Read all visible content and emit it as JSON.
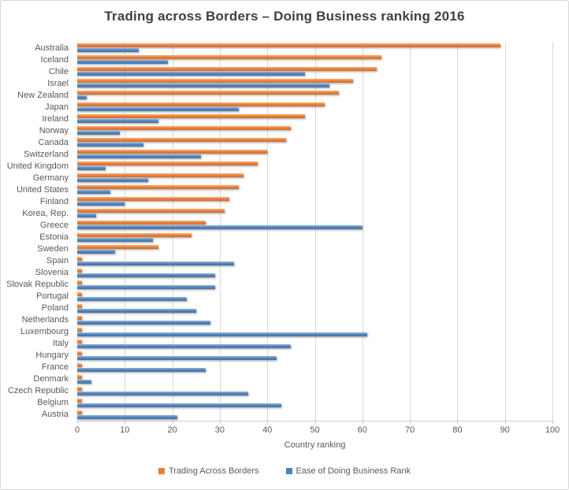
{
  "title": "Trading across Borders – Doing Business ranking 2016",
  "chart_data": {
    "type": "bar",
    "orientation": "horizontal",
    "title": "Trading across Borders – Doing Business ranking 2016",
    "xlabel": "Country ranking",
    "xlim": [
      0,
      100
    ],
    "x_ticks": [
      0,
      10,
      20,
      30,
      40,
      50,
      60,
      70,
      80,
      90,
      100
    ],
    "grid": "vertical",
    "legend_position": "bottom",
    "categories": [
      "Australia",
      "Iceland",
      "Chile",
      "Israel",
      "New Zealand",
      "Japan",
      "Ireland",
      "Norway",
      "Canada",
      "Switzerland",
      "United Kingdom",
      "Germany",
      "United States",
      "Finland",
      "Korea, Rep.",
      "Greece",
      "Estonia",
      "Sweden",
      "Spain",
      "Slovenia",
      "Slovak Republic",
      "Portugal",
      "Poland",
      "Netherlands",
      "Luxembourg",
      "Italy",
      "Hungary",
      "France",
      "Denmark",
      "Czech Republic",
      "Belgium",
      "Austria"
    ],
    "series": [
      {
        "name": "Trading Across Borders",
        "color": "#ED7D31",
        "values": [
          89,
          64,
          63,
          58,
          55,
          52,
          48,
          45,
          44,
          40,
          38,
          35,
          34,
          32,
          31,
          27,
          24,
          17,
          1,
          1,
          1,
          1,
          1,
          1,
          1,
          1,
          1,
          1,
          1,
          1,
          1,
          1
        ]
      },
      {
        "name": "Ease of Doing Business Rank",
        "color": "#4F81BD",
        "values": [
          13,
          19,
          48,
          53,
          2,
          34,
          17,
          9,
          14,
          26,
          6,
          15,
          7,
          10,
          4,
          60,
          16,
          8,
          33,
          29,
          29,
          23,
          25,
          28,
          61,
          45,
          42,
          27,
          3,
          36,
          43,
          21
        ]
      }
    ]
  }
}
